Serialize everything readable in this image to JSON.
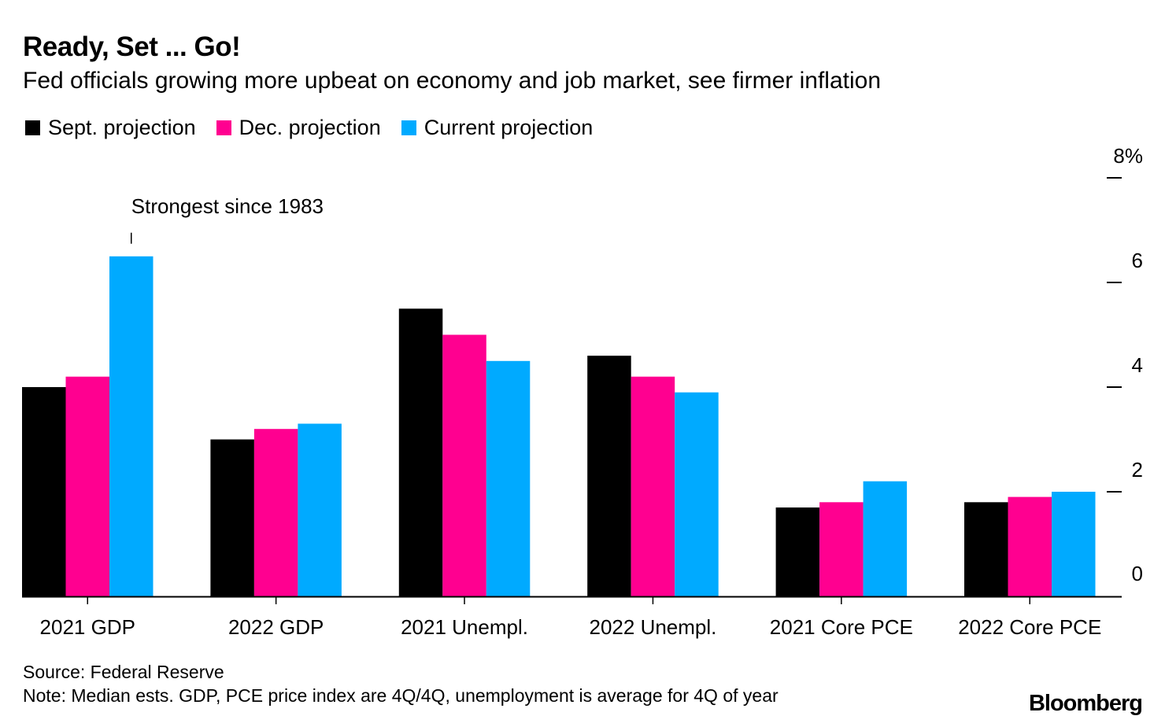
{
  "header": {
    "title": "Ready, Set ... Go!",
    "subtitle": "Fed officials growing more upbeat on economy and job market, see firmer inflation"
  },
  "footer": {
    "source": "Source: Federal Reserve",
    "note": "Note: Median ests. GDP, PCE price index are 4Q/4Q, unemployment is average for 4Q of year",
    "brand": "Bloomberg"
  },
  "colors": {
    "sept": "#000000",
    "dec": "#ff0090",
    "current": "#00aaff",
    "axis": "#000000"
  },
  "chart_data": {
    "type": "bar",
    "title": "Ready, Set ... Go!",
    "subtitle": "Fed officials growing more upbeat on economy and job market, see firmer inflation",
    "xlabel": "",
    "ylabel": "",
    "ylim": [
      0,
      8
    ],
    "yticks": [
      0,
      2,
      4,
      6,
      8
    ],
    "ytick_labels": [
      "0",
      "2",
      "4",
      "6",
      "8%"
    ],
    "y_axis_side": "right",
    "grid": false,
    "legend_position": "top-left",
    "categories": [
      "2021 GDP",
      "2022 GDP",
      "2021 Unempl.",
      "2022 Unempl.",
      "2021 Core PCE",
      "2022 Core PCE"
    ],
    "series": [
      {
        "name": "Sept. projection",
        "color_key": "sept",
        "values": [
          4.0,
          3.0,
          5.5,
          4.6,
          1.7,
          1.8
        ]
      },
      {
        "name": "Dec. projection",
        "color_key": "dec",
        "values": [
          4.2,
          3.2,
          5.0,
          4.2,
          1.8,
          1.9
        ]
      },
      {
        "name": "Current projection",
        "color_key": "current",
        "values": [
          6.5,
          3.3,
          4.5,
          3.9,
          2.2,
          2.0
        ]
      }
    ],
    "annotation": {
      "text": "Strongest since 1983",
      "category": "2021 GDP",
      "series": "Current projection"
    }
  }
}
